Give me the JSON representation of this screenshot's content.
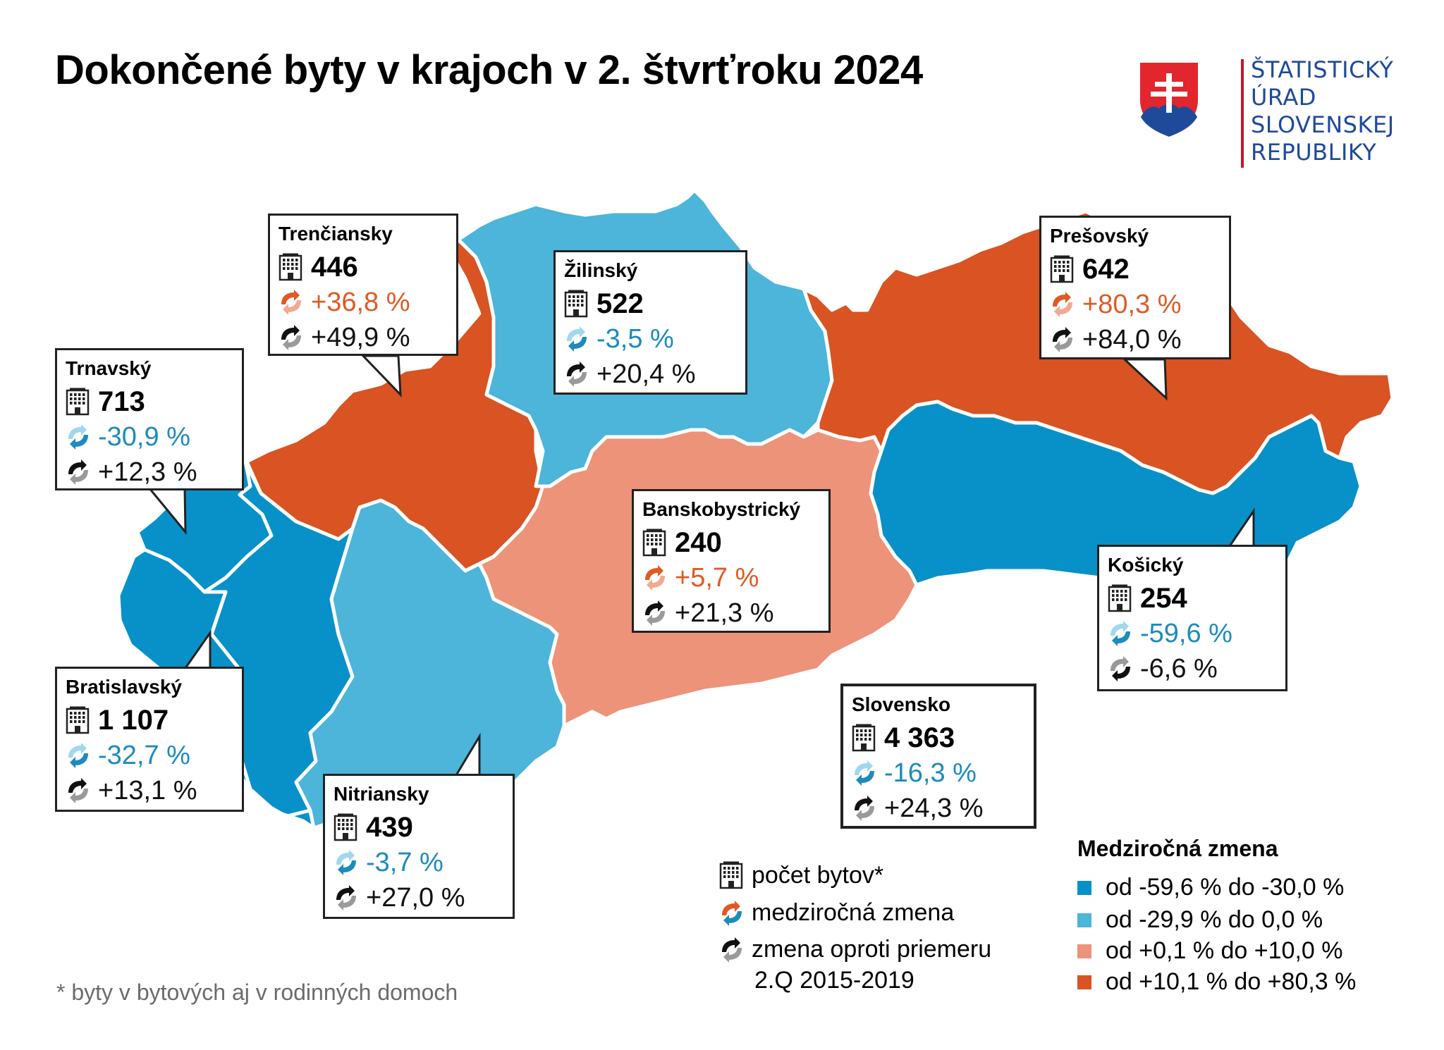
{
  "title": "Dokončené byty v krajoch v 2. štvrťroku 2024",
  "logo": {
    "lines": [
      "ŠTATISTICKÝ",
      "ÚRAD",
      "SLOVENSKEJ",
      "REPUBLIKY"
    ]
  },
  "icons": {
    "count": "building-icon",
    "yoy": "yoy-change-icon",
    "avg": "avg-change-icon"
  },
  "colors": {
    "class1": "#0891c8",
    "class2": "#4db4da",
    "class3": "#ed937a",
    "class4": "#d95323",
    "blue_text": "#1c8bbd",
    "orange_text": "#e05a24"
  },
  "regions": [
    {
      "id": "trnavsky",
      "name": "Trnavský",
      "count": "713",
      "yoy": "-30,9 %",
      "avg": "+12,3 %",
      "class": "class1"
    },
    {
      "id": "trenciansky",
      "name": "Trenčiansky",
      "count": "446",
      "yoy": "+36,8 %",
      "avg": "+49,9 %",
      "class": "class4"
    },
    {
      "id": "zilinsky",
      "name": "Žilinský",
      "count": "522",
      "yoy": "-3,5 %",
      "avg": "+20,4 %",
      "class": "class2"
    },
    {
      "id": "presovsky",
      "name": "Prešovský",
      "count": "642",
      "yoy": "+80,3 %",
      "avg": "+84,0 %",
      "class": "class4"
    },
    {
      "id": "banskobystricky",
      "name": "Banskobystrický",
      "count": "240",
      "yoy": "+5,7 %",
      "avg": "+21,3 %",
      "class": "class3"
    },
    {
      "id": "kosicky",
      "name": "Košický",
      "count": "254",
      "yoy": "-59,6 %",
      "avg": "-6,6 %",
      "class": "class1"
    },
    {
      "id": "bratislavsky",
      "name": "Bratislavský",
      "count": "1 107",
      "yoy": "-32,7 %",
      "avg": "+13,1 %",
      "class": "class1"
    },
    {
      "id": "nitriansky",
      "name": "Nitriansky",
      "count": "439",
      "yoy": "-3,7 %",
      "avg": "+27,0 %",
      "class": "class2"
    }
  ],
  "total": {
    "name": "Slovensko",
    "count": "4 363",
    "yoy": "-16,3 %",
    "avg": "+24,3 %"
  },
  "key": {
    "count": "počet bytov*",
    "yoy": "medziročná zmena",
    "avg_line1": "zmena oproti priemeru",
    "avg_line2": "2.Q 2015-2019"
  },
  "legend": {
    "title": "Medziročná zmena",
    "items": [
      {
        "label": "od -59,6 % do -30,0 %",
        "color": "#0891c8"
      },
      {
        "label": "od -29,9 % do 0,0 %",
        "color": "#4db4da"
      },
      {
        "label": "od +0,1 % do +10,0 %",
        "color": "#ed937a"
      },
      {
        "label": "od +10,1 % do +80,3 %",
        "color": "#d95323"
      }
    ]
  },
  "footnote": "* byty v bytových aj v rodinných domoch"
}
